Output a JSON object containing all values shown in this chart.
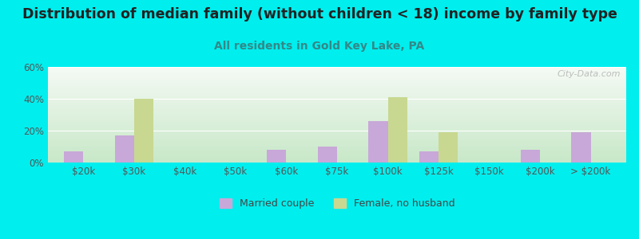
{
  "title": "Distribution of median family (without children < 18) income by family type",
  "subtitle": "All residents in Gold Key Lake, PA",
  "categories": [
    "$20k",
    "$30k",
    "$40k",
    "$50k",
    "$60k",
    "$75k",
    "$100k",
    "$125k",
    "$150k",
    "$200k",
    "> $200k"
  ],
  "married_couple": [
    7,
    17,
    0,
    0,
    8,
    10,
    26,
    7,
    0,
    8,
    19
  ],
  "female_no_husband": [
    0,
    40,
    0,
    0,
    0,
    0,
    41,
    19,
    0,
    0,
    0
  ],
  "married_color": "#c8a8d8",
  "female_color": "#c8d890",
  "background_outer": "#00eeee",
  "ylim": [
    0,
    60
  ],
  "yticks": [
    0,
    20,
    40,
    60
  ],
  "ytick_labels": [
    "0%",
    "20%",
    "40%",
    "60%"
  ],
  "bar_width": 0.38,
  "watermark": "City-Data.com",
  "title_fontsize": 12.5,
  "subtitle_fontsize": 10,
  "subtitle_color": "#338888",
  "tick_fontsize": 8.5,
  "legend_fontsize": 9,
  "gradient_top": "#f5faf5",
  "gradient_bottom": "#c8e8c8"
}
